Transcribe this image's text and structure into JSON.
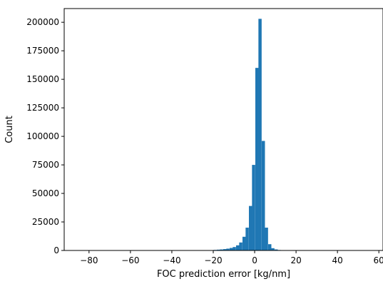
{
  "chart_data": {
    "type": "bar",
    "subtype": "histogram",
    "title": "",
    "xlabel": "FOC prediction error [kg/nm]",
    "ylabel": "Count",
    "xlim": [
      -92,
      62
    ],
    "ylim": [
      0,
      212000
    ],
    "xticks": [
      -80,
      -60,
      -40,
      -20,
      0,
      20,
      40,
      60
    ],
    "xtick_labels": [
      "−80",
      "−60",
      "−40",
      "−20",
      "0",
      "20",
      "40",
      "60"
    ],
    "yticks": [
      0,
      25000,
      50000,
      75000,
      100000,
      125000,
      150000,
      175000,
      200000
    ],
    "ytick_labels": [
      "0",
      "25000",
      "50000",
      "75000",
      "100000",
      "125000",
      "150000",
      "175000",
      "200000"
    ],
    "grid": false,
    "legend": "none",
    "bin_width": 1.55,
    "bins": [
      {
        "x": -22.2,
        "value": 100
      },
      {
        "x": -20.6,
        "value": 300
      },
      {
        "x": -19.1,
        "value": 500
      },
      {
        "x": -17.5,
        "value": 700
      },
      {
        "x": -16.0,
        "value": 900
      },
      {
        "x": -14.4,
        "value": 1200
      },
      {
        "x": -12.9,
        "value": 1600
      },
      {
        "x": -11.3,
        "value": 2200
      },
      {
        "x": -9.8,
        "value": 3000
      },
      {
        "x": -8.2,
        "value": 4500
      },
      {
        "x": -6.7,
        "value": 7000
      },
      {
        "x": -5.1,
        "value": 12000
      },
      {
        "x": -3.6,
        "value": 20000
      },
      {
        "x": -2.0,
        "value": 39000
      },
      {
        "x": -0.5,
        "value": 75000
      },
      {
        "x": 1.1,
        "value": 160000
      },
      {
        "x": 2.6,
        "value": 203000
      },
      {
        "x": 4.2,
        "value": 96000
      },
      {
        "x": 5.7,
        "value": 20000
      },
      {
        "x": 7.3,
        "value": 5500
      },
      {
        "x": 8.8,
        "value": 2000
      },
      {
        "x": 10.4,
        "value": 900
      },
      {
        "x": 11.9,
        "value": 400
      },
      {
        "x": 13.5,
        "value": 200
      },
      {
        "x": 15.0,
        "value": 100
      }
    ],
    "colors": {
      "bar": "#1f77b4",
      "axis": "#000000",
      "background": "#ffffff"
    }
  }
}
